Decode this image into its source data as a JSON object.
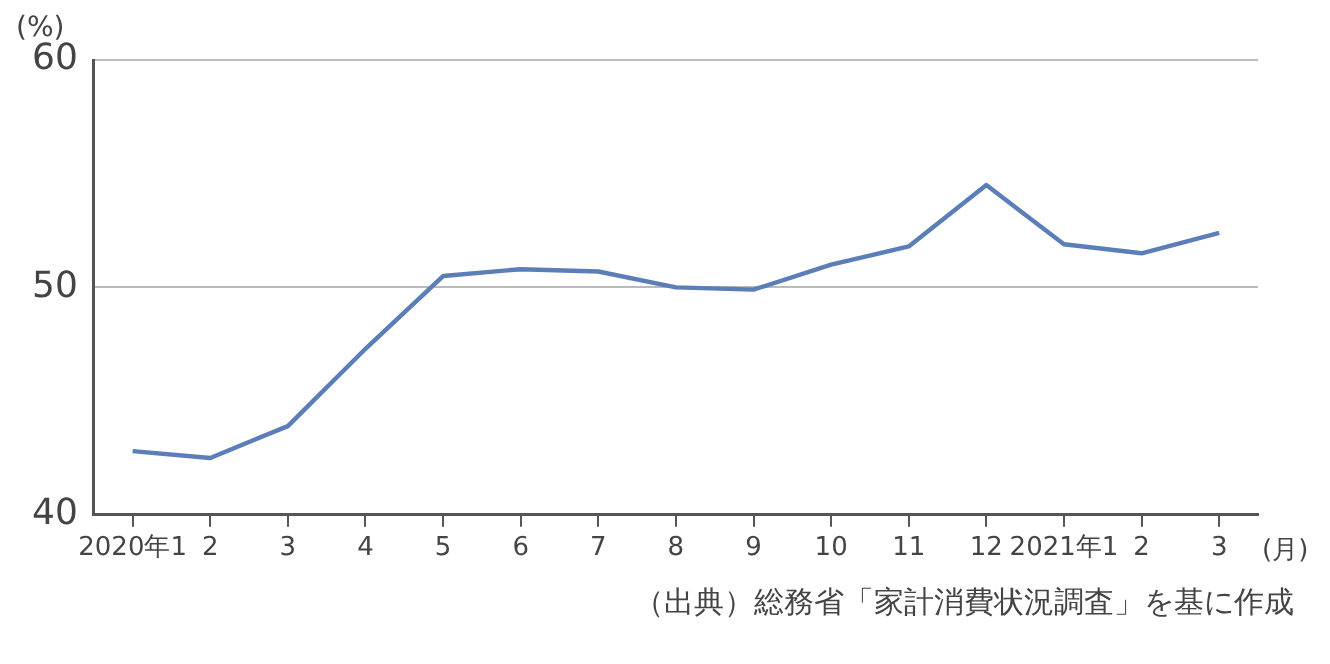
{
  "chart_data": {
    "type": "line",
    "ylabel": "(%)",
    "xlabel": "(月)",
    "categories": [
      "2020年1",
      "2",
      "3",
      "4",
      "5",
      "6",
      "7",
      "8",
      "9",
      "10",
      "11",
      "12",
      "2021年1",
      "2",
      "3"
    ],
    "series": [
      {
        "color": "#5b7db8",
        "values": [
          42.8,
          42.5,
          43.9,
          47.3,
          50.5,
          50.8,
          50.7,
          50.0,
          49.9,
          51.0,
          51.8,
          54.5,
          51.9,
          51.5,
          52.4
        ]
      }
    ],
    "ylim": [
      40,
      60
    ],
    "yticks": [
      40,
      50,
      60
    ],
    "grid": "y",
    "legend": false,
    "marker": "none",
    "line_style": "solid",
    "annotations": [
      "（出典）総務省「家計消費状況調査」を基に作成"
    ]
  }
}
